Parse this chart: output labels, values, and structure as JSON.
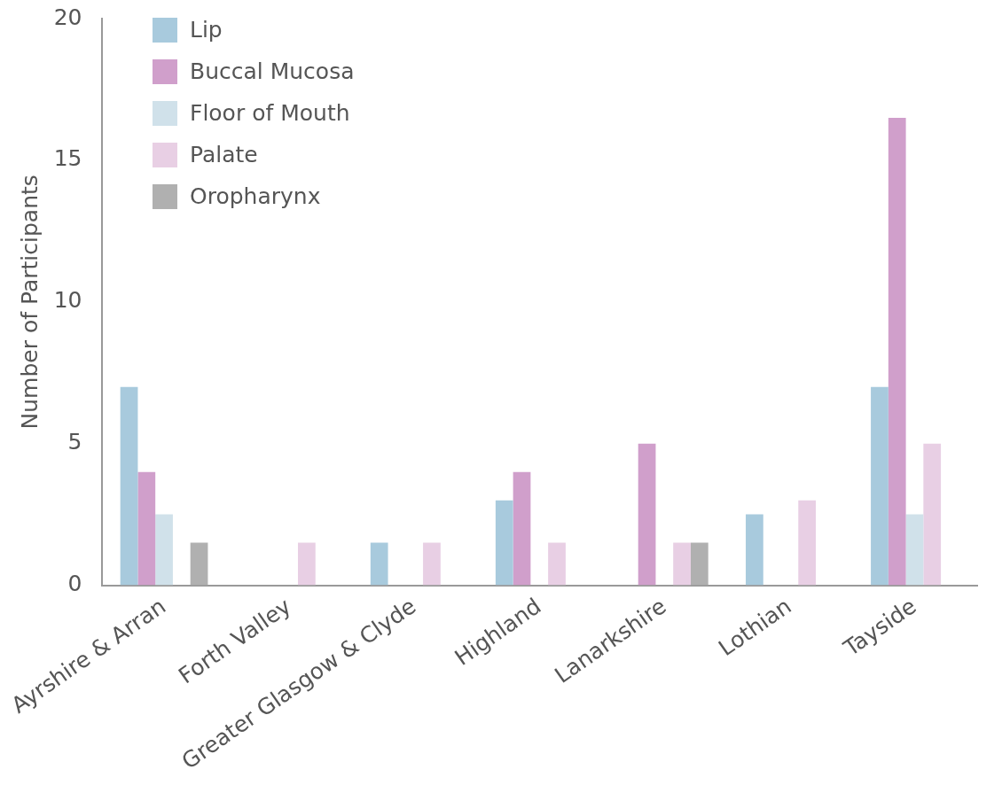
{
  "chart_data": {
    "type": "bar",
    "ylabel": "Number of Participants",
    "categories": [
      "Ayrshire & Arran",
      "Forth Valley",
      "Greater Glasgow & Clyde",
      "Highland",
      "Lanarkshire",
      "Lothian",
      "Tayside"
    ],
    "series": [
      {
        "name": "Lip",
        "color": "#a8cadd",
        "values": [
          7,
          null,
          1.5,
          3,
          null,
          2.5,
          7
        ]
      },
      {
        "name": "Buccal Mucosa",
        "color": "#d09fcb",
        "values": [
          4,
          null,
          null,
          4,
          5,
          null,
          16.5
        ]
      },
      {
        "name": "Floor of Mouth",
        "color": "#d0e1ea",
        "values": [
          2.5,
          null,
          null,
          null,
          null,
          null,
          2.5
        ]
      },
      {
        "name": "Palate",
        "color": "#e8cfe4",
        "values": [
          null,
          1.5,
          1.5,
          1.5,
          1.5,
          3,
          5
        ]
      },
      {
        "name": "Oropharynx",
        "color": "#b0b0b0",
        "values": [
          1.5,
          null,
          null,
          null,
          1.5,
          null,
          null
        ]
      }
    ],
    "ylim": [
      0,
      20
    ],
    "yticks": [
      0,
      5,
      10,
      15,
      20
    ],
    "grid": false,
    "legend": "top left"
  }
}
